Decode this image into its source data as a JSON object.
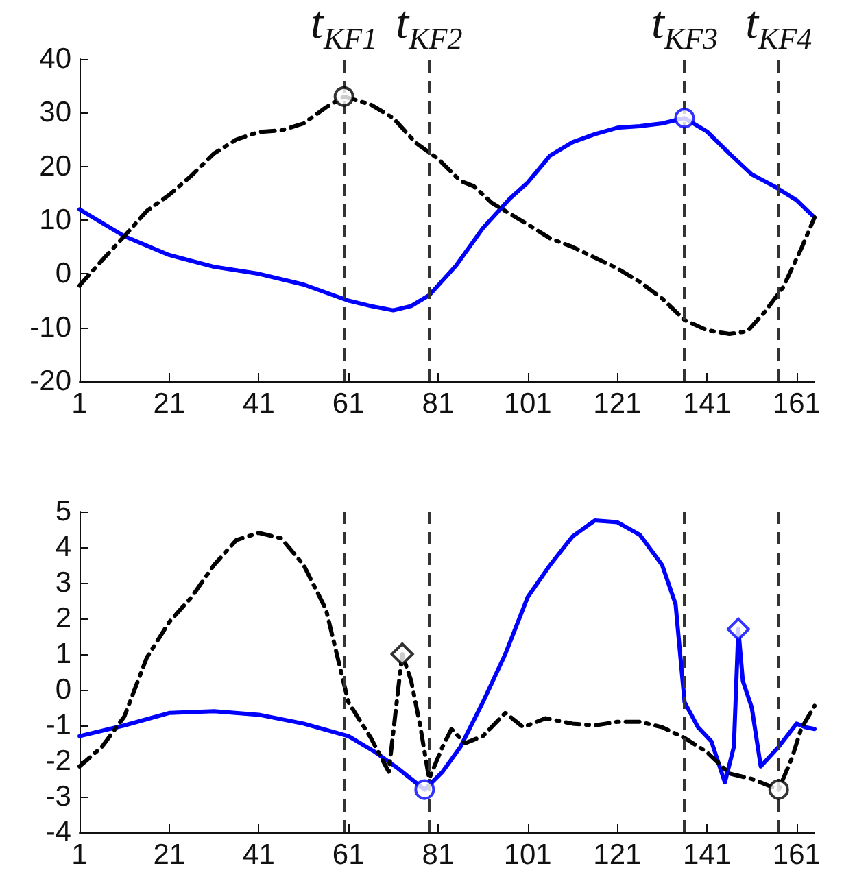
{
  "chart_data": [
    {
      "type": "line",
      "xlim": [
        1,
        165
      ],
      "xticks": [
        1,
        21,
        41,
        61,
        81,
        101,
        121,
        141,
        161
      ],
      "ylim": [
        -20,
        40
      ],
      "yticks": [
        -20,
        -10,
        0,
        10,
        20,
        30,
        40
      ],
      "series": [
        {
          "color": "#0000ff",
          "line_style": "solid",
          "marker": "none",
          "x": [
            1,
            11,
            21,
            31,
            41,
            51,
            61,
            66,
            71,
            75,
            79,
            85,
            91,
            97,
            101,
            106,
            111,
            116,
            121,
            126,
            131,
            136,
            141,
            146,
            151,
            156,
            161,
            165
          ],
          "values": [
            12,
            7,
            3.5,
            1.3,
            0,
            -2,
            -5,
            -6,
            -6.8,
            -6,
            -4,
            1.5,
            8.5,
            14,
            17,
            22,
            24.5,
            26,
            27.2,
            27.5,
            28,
            29,
            26.5,
            22.4,
            18.5,
            16.3,
            13.7,
            10.5
          ]
        },
        {
          "color": "#000000",
          "line_style": "dashdot",
          "marker": "none",
          "x": [
            1,
            6,
            11,
            16,
            21,
            26,
            31,
            36,
            41,
            46,
            51,
            56,
            60,
            66,
            71,
            76,
            81,
            86,
            89,
            93,
            101,
            106,
            111,
            116,
            121,
            126,
            131,
            136,
            141,
            146,
            150,
            154,
            158,
            162,
            165
          ],
          "values": [
            -2.2,
            2.5,
            7,
            11.7,
            14.7,
            18.3,
            22.4,
            25,
            26.4,
            26.7,
            28,
            31,
            33,
            31.5,
            29,
            24.4,
            21.4,
            17.3,
            16.3,
            13.2,
            9.2,
            6.6,
            5,
            3,
            1,
            -1.5,
            -4.6,
            -8.6,
            -10.5,
            -11.2,
            -10.7,
            -7,
            -2.5,
            4.6,
            10.5
          ]
        },
        {
          "type": "scatter",
          "color": "#000000",
          "marker": "circle",
          "x": [
            60
          ],
          "values": [
            33
          ]
        },
        {
          "type": "scatter",
          "color": "#0000ff",
          "marker": "circle",
          "x": [
            136
          ],
          "values": [
            29
          ]
        }
      ],
      "ref_lines": [
        {
          "axis": "x",
          "value": 60,
          "label": "t$_{KF1}$",
          "color": "#333333",
          "line_style": "dashed"
        },
        {
          "axis": "x",
          "value": 79,
          "label": "t$_{KF2}$",
          "color": "#333333",
          "line_style": "dashed"
        },
        {
          "axis": "x",
          "value": 136,
          "label": "t$_{KF3}$",
          "color": "#333333",
          "line_style": "dashed"
        },
        {
          "axis": "x",
          "value": 157,
          "label": "t$_{KF4}$",
          "color": "#333333",
          "line_style": "dashed"
        }
      ]
    },
    {
      "type": "line",
      "xlim": [
        1,
        165
      ],
      "xticks": [
        1,
        21,
        41,
        61,
        81,
        101,
        121,
        141,
        161
      ],
      "ylim": [
        -4,
        5
      ],
      "yticks": [
        -4,
        -3,
        -2,
        -1,
        0,
        1,
        2,
        3,
        4,
        5
      ],
      "series": [
        {
          "color": "#0000ff",
          "line_style": "solid",
          "marker": "none",
          "x": [
            1,
            11,
            21,
            31,
            41,
            51,
            61,
            67,
            72,
            78,
            82,
            86,
            91,
            96,
            101,
            106,
            111,
            116,
            121,
            126,
            131,
            134,
            136,
            139,
            142,
            145,
            147,
            148,
            149,
            151,
            153,
            157,
            161,
            163,
            165
          ],
          "values": [
            -1.3,
            -1.0,
            -0.65,
            -0.6,
            -0.7,
            -0.95,
            -1.3,
            -1.75,
            -2.2,
            -2.8,
            -2.3,
            -1.6,
            -0.35,
            1.0,
            2.6,
            3.5,
            4.3,
            4.75,
            4.7,
            4.35,
            3.5,
            2.4,
            -0.35,
            -1.05,
            -1.45,
            -2.6,
            -1.6,
            1.7,
            0.25,
            -0.5,
            -2.15,
            -1.6,
            -0.95,
            -1.05,
            -1.1
          ]
        },
        {
          "color": "#000000",
          "line_style": "dashdot",
          "marker": "none",
          "x": [
            1,
            6,
            11,
            16,
            21,
            26,
            31,
            36,
            41,
            46,
            51,
            56,
            61,
            66,
            70,
            73,
            75,
            77,
            79,
            82,
            84,
            87,
            91,
            96,
            100,
            105,
            111,
            116,
            121,
            126,
            131,
            136,
            141,
            146,
            151,
            157,
            160,
            162,
            165
          ],
          "values": [
            -2.15,
            -1.6,
            -0.75,
            0.9,
            1.9,
            2.6,
            3.5,
            4.2,
            4.4,
            4.25,
            3.5,
            2.25,
            -0.35,
            -1.35,
            -2.3,
            1.0,
            0.25,
            -1,
            -2.5,
            -1.6,
            -1.1,
            -1.5,
            -1.3,
            -0.65,
            -1.05,
            -0.8,
            -0.95,
            -1.0,
            -0.9,
            -0.9,
            -1.05,
            -1.35,
            -1.75,
            -2.35,
            -2.5,
            -2.8,
            -1.9,
            -1.1,
            -0.45
          ]
        },
        {
          "type": "scatter",
          "color": "#0000ff",
          "marker": "circle",
          "x": [
            78
          ],
          "values": [
            -2.8
          ]
        },
        {
          "type": "scatter",
          "color": "#000000",
          "marker": "circle",
          "x": [
            157
          ],
          "values": [
            -2.8
          ]
        },
        {
          "type": "scatter",
          "color": "#000000",
          "marker": "diamond",
          "x": [
            73
          ],
          "values": [
            1.0
          ]
        },
        {
          "type": "scatter",
          "color": "#0000ff",
          "marker": "diamond",
          "x": [
            148
          ],
          "values": [
            1.7
          ]
        }
      ],
      "ref_lines": [
        {
          "axis": "x",
          "value": 60,
          "color": "#333333",
          "line_style": "dashed"
        },
        {
          "axis": "x",
          "value": 79,
          "color": "#333333",
          "line_style": "dashed"
        },
        {
          "axis": "x",
          "value": 136,
          "color": "#333333",
          "line_style": "dashed"
        },
        {
          "axis": "x",
          "value": 157,
          "color": "#333333",
          "line_style": "dashed"
        }
      ]
    }
  ]
}
